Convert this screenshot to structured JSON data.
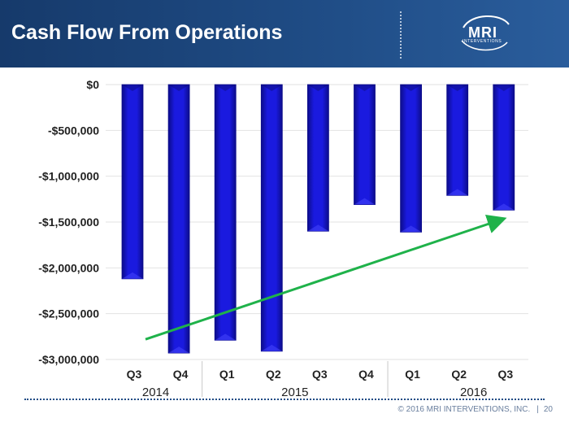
{
  "header": {
    "title": "Cash Flow From Operations",
    "logo_mark": "MRI",
    "logo_sub": "INTERVENTIONS"
  },
  "footer": {
    "copyright": "© 2016 MRI INTERVENTIONS, INC.",
    "page_number": "20"
  },
  "colors": {
    "bar": "#1a1adf",
    "bar_dark": "#0c0c8a",
    "trend": "#1fb24a",
    "axis_label": "#222222",
    "header_bg": "#1f4c85"
  },
  "chart_data": {
    "type": "bar",
    "title": "Cash Flow From Operations",
    "categories": [
      "Q3",
      "Q4",
      "Q1",
      "Q2",
      "Q3",
      "Q4",
      "Q1",
      "Q2",
      "Q3"
    ],
    "groups": [
      {
        "label": "2014",
        "count": 2
      },
      {
        "label": "2015",
        "count": 4
      },
      {
        "label": "2016",
        "count": 3
      }
    ],
    "values": [
      -2120000,
      -2930000,
      -2790000,
      -2910000,
      -1600000,
      -1310000,
      -1610000,
      -1210000,
      -1370000
    ],
    "ylim": [
      -3000000,
      0
    ],
    "yticks": [
      0,
      -500000,
      -1000000,
      -1500000,
      -2000000,
      -2500000,
      -3000000
    ],
    "ytick_labels": [
      "$0",
      "-$500,000",
      "-$1,000,000",
      "-$1,500,000",
      "-$2,000,000",
      "-$2,500,000",
      "-$3,000,000"
    ],
    "trend": {
      "start_index": 0,
      "start_value": -2780000,
      "end_index": 8,
      "end_value": -1470000
    },
    "grid": true,
    "legend": "none"
  }
}
